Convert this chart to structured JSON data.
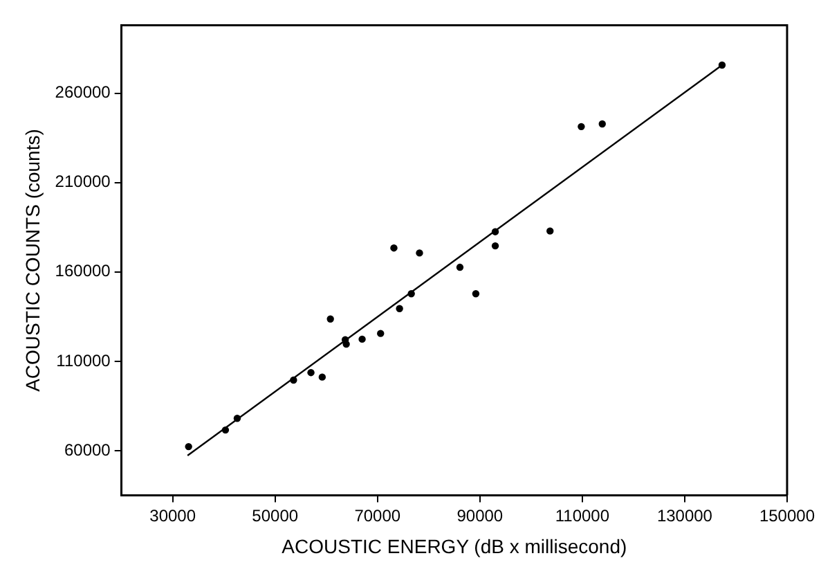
{
  "chart_data": {
    "type": "scatter",
    "xlabel": "ACOUSTIC ENERGY (dB x millisecond)",
    "ylabel": "ACOUSTIC COUNTS (counts)",
    "xlim": [
      20000,
      150000
    ],
    "xticks": [
      30000,
      50000,
      70000,
      90000,
      110000,
      130000,
      150000
    ],
    "ylim": [
      35000,
      298000
    ],
    "yticks": [
      60000,
      110000,
      160000,
      210000,
      260000
    ],
    "grid": false,
    "legend": false,
    "marker": "circle",
    "series": [
      {
        "type": "scatter",
        "color": "#000000",
        "x": [
          33100,
          40300,
          42600,
          53600,
          57000,
          59200,
          60800,
          63700,
          63900,
          67000,
          70600,
          73200,
          74300,
          76600,
          78200,
          86100,
          89200,
          93000,
          93000,
          103700,
          109800,
          113900,
          137300
        ],
        "values": [
          62300,
          71600,
          78100,
          99500,
          103700,
          101200,
          133700,
          122100,
          119600,
          122400,
          125600,
          173400,
          139500,
          147800,
          170600,
          162600,
          147800,
          182500,
          174600,
          182900,
          241300,
          242800,
          275700
        ]
      },
      {
        "type": "line",
        "color": "#000000",
        "marker": "none",
        "line_style": "solid",
        "x": [
          32900,
          137300
        ],
        "values": [
          57300,
          275700
        ]
      }
    ]
  }
}
